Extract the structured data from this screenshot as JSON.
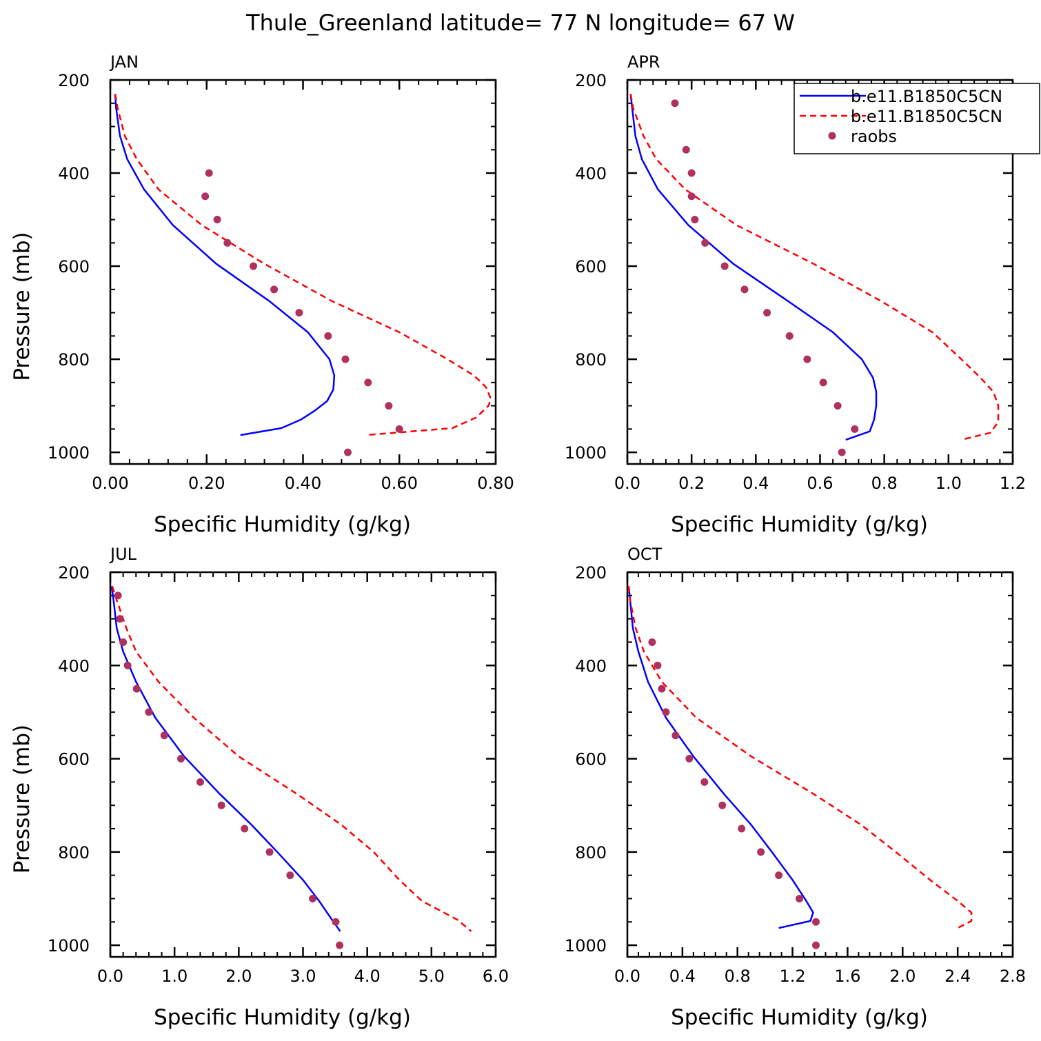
{
  "title": "Thule_Greenland  latitude= 77 N longitude= 67 W",
  "legend": {
    "placement": "top-right of APR panel",
    "entries": [
      {
        "label": "b.e11.B1850C5CN",
        "style": "solid",
        "color": "#0000ff"
      },
      {
        "label": "b.e11.B1850C5CN",
        "style": "dashed",
        "color": "#ff0000"
      },
      {
        "label": "raobs",
        "style": "marker",
        "color": "#b03060"
      }
    ]
  },
  "chart_data": [
    {
      "type": "line",
      "panel": "JAN",
      "xlabel": "Specific Humidity (g/kg)",
      "ylabel": "Pressure (mb)",
      "xlim": [
        0,
        0.8
      ],
      "ylim": [
        200,
        1025
      ],
      "y_reversed": true,
      "xticks": [
        0,
        0.2,
        0.4,
        0.6,
        0.8
      ],
      "xtick_labels": [
        "0.00",
        "0.20",
        "0.40",
        "0.60",
        "0.80"
      ],
      "yticks": [
        200,
        400,
        600,
        800,
        1000
      ],
      "ytick_labels": [
        "200",
        "400",
        "600",
        "800",
        "1000"
      ],
      "series": [
        {
          "style": "solid",
          "color": "#0000ff",
          "points": [
            [
              0.01,
              230
            ],
            [
              0.012,
              260
            ],
            [
              0.02,
              320
            ],
            [
              0.035,
              370
            ],
            [
              0.07,
              435
            ],
            [
              0.13,
              512
            ],
            [
              0.22,
              595
            ],
            [
              0.33,
              675
            ],
            [
              0.41,
              742
            ],
            [
              0.455,
              800
            ],
            [
              0.465,
              835
            ],
            [
              0.463,
              865
            ],
            [
              0.45,
              890
            ],
            [
              0.425,
              910
            ],
            [
              0.395,
              930
            ],
            [
              0.355,
              948
            ],
            [
              0.27,
              963
            ]
          ]
        },
        {
          "style": "dashed",
          "color": "#ff0000",
          "points": [
            [
              0.01,
              230
            ],
            [
              0.015,
              260
            ],
            [
              0.03,
              320
            ],
            [
              0.055,
              370
            ],
            [
              0.1,
              435
            ],
            [
              0.19,
              512
            ],
            [
              0.32,
              595
            ],
            [
              0.46,
              675
            ],
            [
              0.6,
              742
            ],
            [
              0.7,
              800
            ],
            [
              0.755,
              835
            ],
            [
              0.78,
              860
            ],
            [
              0.79,
              885
            ],
            [
              0.785,
              900
            ],
            [
              0.76,
              925
            ],
            [
              0.71,
              948
            ],
            [
              0.53,
              963
            ]
          ]
        },
        {
          "style": "markers",
          "color": "#b03060",
          "points": [
            [
              0.205,
              400
            ],
            [
              0.197,
              450
            ],
            [
              0.222,
              500
            ],
            [
              0.243,
              550
            ],
            [
              0.297,
              600
            ],
            [
              0.34,
              650
            ],
            [
              0.392,
              700
            ],
            [
              0.452,
              750
            ],
            [
              0.488,
              800
            ],
            [
              0.535,
              850
            ],
            [
              0.578,
              900
            ],
            [
              0.6,
              950
            ],
            [
              0.493,
              1000
            ]
          ]
        }
      ]
    },
    {
      "type": "line",
      "panel": "APR",
      "xlabel": "Specific Humidity (g/kg)",
      "ylabel": "",
      "xlim": [
        0,
        1.2
      ],
      "ylim": [
        200,
        1025
      ],
      "y_reversed": true,
      "xticks": [
        0,
        0.2,
        0.4,
        0.6,
        0.8,
        1.0,
        1.2
      ],
      "xtick_labels": [
        "0.0",
        "0.2",
        "0.4",
        "0.6",
        "0.8",
        "1.0",
        "1.2"
      ],
      "yticks": [
        200,
        400,
        600,
        800,
        1000
      ],
      "ytick_labels": [
        "200",
        "400",
        "600",
        "800",
        "1000"
      ],
      "series": [
        {
          "style": "solid",
          "color": "#0000ff",
          "points": [
            [
              0.01,
              230
            ],
            [
              0.015,
              260
            ],
            [
              0.025,
              320
            ],
            [
              0.045,
              370
            ],
            [
              0.095,
              435
            ],
            [
              0.19,
              512
            ],
            [
              0.33,
              595
            ],
            [
              0.5,
              675
            ],
            [
              0.64,
              742
            ],
            [
              0.73,
              800
            ],
            [
              0.765,
              840
            ],
            [
              0.775,
              870
            ],
            [
              0.775,
              900
            ],
            [
              0.768,
              930
            ],
            [
              0.755,
              955
            ],
            [
              0.68,
              973
            ]
          ]
        },
        {
          "style": "dashed",
          "color": "#ff0000",
          "points": [
            [
              0.01,
              230
            ],
            [
              0.018,
              260
            ],
            [
              0.05,
              320
            ],
            [
              0.09,
              370
            ],
            [
              0.18,
              435
            ],
            [
              0.34,
              512
            ],
            [
              0.58,
              595
            ],
            [
              0.79,
              675
            ],
            [
              0.95,
              742
            ],
            [
              1.04,
              800
            ],
            [
              1.1,
              840
            ],
            [
              1.14,
              870
            ],
            [
              1.155,
              900
            ],
            [
              1.155,
              935
            ],
            [
              1.13,
              958
            ],
            [
              1.04,
              973
            ]
          ]
        },
        {
          "style": "markers",
          "color": "#b03060",
          "points": [
            [
              0.148,
              250
            ],
            [
              0.183,
              350
            ],
            [
              0.2,
              400
            ],
            [
              0.2,
              450
            ],
            [
              0.21,
              500
            ],
            [
              0.242,
              550
            ],
            [
              0.303,
              600
            ],
            [
              0.365,
              650
            ],
            [
              0.435,
              700
            ],
            [
              0.505,
              750
            ],
            [
              0.56,
              800
            ],
            [
              0.61,
              850
            ],
            [
              0.655,
              900
            ],
            [
              0.708,
              950
            ],
            [
              0.668,
              1000
            ]
          ]
        }
      ]
    },
    {
      "type": "line",
      "panel": "JUL",
      "xlabel": "Specific Humidity (g/kg)",
      "ylabel": "Pressure (mb)",
      "xlim": [
        0,
        6.0
      ],
      "ylim": [
        200,
        1025
      ],
      "y_reversed": true,
      "xticks": [
        0,
        1,
        2,
        3,
        4,
        5,
        6
      ],
      "xtick_labels": [
        "0.0",
        "1.0",
        "2.0",
        "3.0",
        "4.0",
        "5.0",
        "6.0"
      ],
      "yticks": [
        200,
        400,
        600,
        800,
        1000
      ],
      "ytick_labels": [
        "200",
        "400",
        "600",
        "800",
        "1000"
      ],
      "series": [
        {
          "style": "solid",
          "color": "#0000ff",
          "points": [
            [
              0.02,
              230
            ],
            [
              0.05,
              260
            ],
            [
              0.1,
              320
            ],
            [
              0.2,
              370
            ],
            [
              0.4,
              435
            ],
            [
              0.7,
              512
            ],
            [
              1.15,
              595
            ],
            [
              1.7,
              675
            ],
            [
              2.2,
              742
            ],
            [
              2.6,
              800
            ],
            [
              3.0,
              860
            ],
            [
              3.25,
              905
            ],
            [
              3.45,
              945
            ],
            [
              3.58,
              970
            ]
          ]
        },
        {
          "style": "dashed",
          "color": "#ff0000",
          "points": [
            [
              0.03,
              230
            ],
            [
              0.1,
              260
            ],
            [
              0.25,
              320
            ],
            [
              0.4,
              370
            ],
            [
              0.75,
              435
            ],
            [
              1.3,
              512
            ],
            [
              2.0,
              595
            ],
            [
              2.9,
              675
            ],
            [
              3.6,
              742
            ],
            [
              4.1,
              800
            ],
            [
              4.5,
              860
            ],
            [
              4.85,
              905
            ],
            [
              5.4,
              945
            ],
            [
              5.62,
              970
            ]
          ]
        },
        {
          "style": "markers",
          "color": "#b03060",
          "points": [
            [
              0.12,
              250
            ],
            [
              0.15,
              300
            ],
            [
              0.2,
              350
            ],
            [
              0.27,
              400
            ],
            [
              0.41,
              450
            ],
            [
              0.6,
              500
            ],
            [
              0.84,
              550
            ],
            [
              1.1,
              600
            ],
            [
              1.4,
              650
            ],
            [
              1.73,
              700
            ],
            [
              2.09,
              750
            ],
            [
              2.48,
              800
            ],
            [
              2.8,
              850
            ],
            [
              3.15,
              900
            ],
            [
              3.51,
              950
            ],
            [
              3.57,
              1000
            ]
          ]
        }
      ]
    },
    {
      "type": "line",
      "panel": "OCT",
      "xlabel": "Specific Humidity (g/kg)",
      "ylabel": "",
      "xlim": [
        0,
        2.8
      ],
      "ylim": [
        200,
        1025
      ],
      "y_reversed": true,
      "xticks": [
        0,
        0.4,
        0.8,
        1.2,
        1.6,
        2.0,
        2.4,
        2.8
      ],
      "xtick_labels": [
        "0.0",
        "0.4",
        "0.8",
        "1.2",
        "1.6",
        "2.0",
        "2.4",
        "2.8"
      ],
      "yticks": [
        200,
        400,
        600,
        800,
        1000
      ],
      "ytick_labels": [
        "200",
        "400",
        "600",
        "800",
        "1000"
      ],
      "series": [
        {
          "style": "solid",
          "color": "#0000ff",
          "points": [
            [
              0.01,
              230
            ],
            [
              0.02,
              260
            ],
            [
              0.04,
              320
            ],
            [
              0.08,
              370
            ],
            [
              0.15,
              435
            ],
            [
              0.28,
              512
            ],
            [
              0.48,
              595
            ],
            [
              0.7,
              675
            ],
            [
              0.9,
              742
            ],
            [
              1.05,
              800
            ],
            [
              1.2,
              860
            ],
            [
              1.3,
              905
            ],
            [
              1.35,
              930
            ],
            [
              1.33,
              948
            ],
            [
              1.1,
              963
            ]
          ]
        },
        {
          "style": "dashed",
          "color": "#ff0000",
          "points": [
            [
              0.01,
              230
            ],
            [
              0.02,
              260
            ],
            [
              0.06,
              320
            ],
            [
              0.12,
              370
            ],
            [
              0.25,
              435
            ],
            [
              0.5,
              512
            ],
            [
              0.9,
              595
            ],
            [
              1.35,
              675
            ],
            [
              1.7,
              742
            ],
            [
              1.95,
              800
            ],
            [
              2.2,
              860
            ],
            [
              2.4,
              905
            ],
            [
              2.5,
              930
            ],
            [
              2.5,
              948
            ],
            [
              2.4,
              963
            ]
          ]
        },
        {
          "style": "markers",
          "color": "#b03060",
          "points": [
            [
              0.18,
              350
            ],
            [
              0.22,
              400
            ],
            [
              0.25,
              450
            ],
            [
              0.28,
              500
            ],
            [
              0.35,
              550
            ],
            [
              0.45,
              600
            ],
            [
              0.56,
              650
            ],
            [
              0.69,
              700
            ],
            [
              0.83,
              750
            ],
            [
              0.97,
              800
            ],
            [
              1.1,
              850
            ],
            [
              1.25,
              900
            ],
            [
              1.37,
              950
            ],
            [
              1.37,
              1000
            ]
          ]
        }
      ]
    }
  ]
}
